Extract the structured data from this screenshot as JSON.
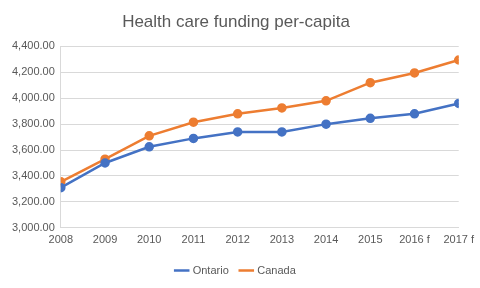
{
  "chart_data": {
    "type": "line",
    "title": "Health care funding per-capita",
    "categories": [
      "2008",
      "2009",
      "2010",
      "2011",
      "2012",
      "2013",
      "2014",
      "2015",
      "2016 f",
      "2017 f"
    ],
    "series": [
      {
        "name": "Ontario",
        "color": "#4472c4",
        "marker": "circle",
        "values": [
          3310,
          3500,
          3625,
          3690,
          3740,
          3740,
          3800,
          3845,
          3880,
          3960
        ]
      },
      {
        "name": "Canada",
        "color": "#ed7d31",
        "marker": "circle",
        "values": [
          3355,
          3530,
          3710,
          3815,
          3880,
          3925,
          3980,
          4120,
          4195,
          4295
        ]
      }
    ],
    "ylim": [
      3000,
      4400
    ],
    "yticks": [
      {
        "value": 3000,
        "label": "3,000.00"
      },
      {
        "value": 3200,
        "label": "3,200.00"
      },
      {
        "value": 3400,
        "label": "3,400.00"
      },
      {
        "value": 3600,
        "label": "3,600.00"
      },
      {
        "value": 3800,
        "label": "3,800.00"
      },
      {
        "value": 4000,
        "label": "4,000.00"
      },
      {
        "value": 4200,
        "label": "4,200.00"
      },
      {
        "value": 4400,
        "label": "4,400.00"
      }
    ],
    "grid": true,
    "legend": "bottom"
  }
}
